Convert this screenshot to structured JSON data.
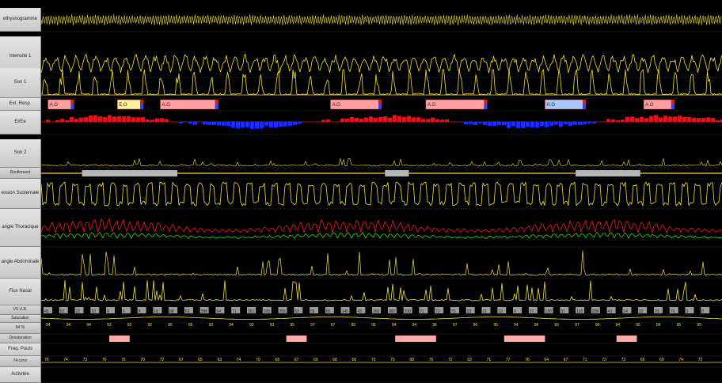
{
  "channels": [
    {
      "label": "ethysnogramme"
    },
    {
      "label": "Intensité 1"
    },
    {
      "label": "Son 1"
    },
    {
      "label": "Evt. Resp."
    },
    {
      "label": "Ei/Ee"
    },
    {
      "label": "Son 2"
    },
    {
      "label": "Ronflement"
    },
    {
      "label": "ession Susternale"
    },
    {
      "label": "angle Thoracique"
    },
    {
      "label": "angle Abdominale"
    },
    {
      "label": "Flux Nasal"
    },
    {
      "label": "VS U.R."
    },
    {
      "label": "Saturation"
    },
    {
      "label": "94 %"
    },
    {
      "label": "Désaturation"
    },
    {
      "label": "Freq. Pouls"
    },
    {
      "label": "74 c/mn"
    },
    {
      "label": "Activitée"
    }
  ],
  "respiratory_events": [
    {
      "label": "A.O",
      "start": 0.01,
      "end": 0.048,
      "color": "#ffa0a0"
    },
    {
      "label": "E.O",
      "start": 0.112,
      "end": 0.15,
      "color": "#fff0a0"
    },
    {
      "label": "A.O",
      "start": 0.175,
      "end": 0.26,
      "color": "#ffa0a0"
    },
    {
      "label": "A.O",
      "start": 0.425,
      "end": 0.5,
      "color": "#ffa0a0"
    },
    {
      "label": "A.O",
      "start": 0.565,
      "end": 0.655,
      "color": "#ffa0a0"
    },
    {
      "label": "H.O",
      "start": 0.74,
      "end": 0.8,
      "color": "#a8c8ff"
    },
    {
      "label": "A.O",
      "start": 0.885,
      "end": 0.93,
      "color": "#ffa0a0"
    }
  ],
  "snoring_blocks": [
    {
      "start": 0.06,
      "end": 0.2
    },
    {
      "start": 0.505,
      "end": 0.54
    },
    {
      "start": 0.785,
      "end": 0.88
    }
  ],
  "desaturation_blocks": [
    {
      "start": 0.1,
      "end": 0.13
    },
    {
      "start": 0.36,
      "end": 0.39
    },
    {
      "start": 0.52,
      "end": 0.58
    },
    {
      "start": 0.68,
      "end": 0.74
    },
    {
      "start": 0.845,
      "end": 0.875
    }
  ],
  "vs_values": [
    "45",
    "52",
    "22",
    "10",
    "0",
    "0",
    "8",
    "18",
    "88",
    "63",
    "388",
    "54",
    "71",
    "361",
    "165",
    "256",
    "63",
    "55",
    "66",
    "145",
    "43",
    "369",
    "382",
    "290",
    "72",
    "72",
    "75",
    "23",
    "21",
    "13",
    "0",
    "27",
    "190",
    "37",
    "192",
    "208",
    "43",
    "14",
    "22",
    "29",
    "70",
    "3",
    "0"
  ],
  "saturation_values": [
    "94",
    "94",
    "94",
    "92",
    "92",
    "92",
    "95",
    "95",
    "93",
    "94",
    "93",
    "93",
    "95",
    "97",
    "97",
    "95",
    "95",
    "94",
    "94",
    "96",
    "97",
    "96",
    "95",
    "94",
    "96",
    "95",
    "97",
    "96",
    "94",
    "95",
    "96",
    "95",
    "95"
  ],
  "pulse_values": [
    "76",
    "74",
    "73",
    "76",
    "75",
    "70",
    "72",
    "67",
    "65",
    "63",
    "74",
    "70",
    "68",
    "67",
    "69",
    "68",
    "66",
    "70",
    "79",
    "80",
    "76",
    "72",
    "63",
    "71",
    "77",
    "76",
    "64",
    "67",
    "71",
    "73",
    "73",
    "66",
    "69",
    "74",
    "72"
  ],
  "colors": {
    "yellow": "#f4e23a",
    "red": "#e0141e",
    "blue": "#1c2cff",
    "green": "#23c425",
    "gray_block": "#b6b6b6",
    "desat_pink": "#ffa8a8"
  }
}
